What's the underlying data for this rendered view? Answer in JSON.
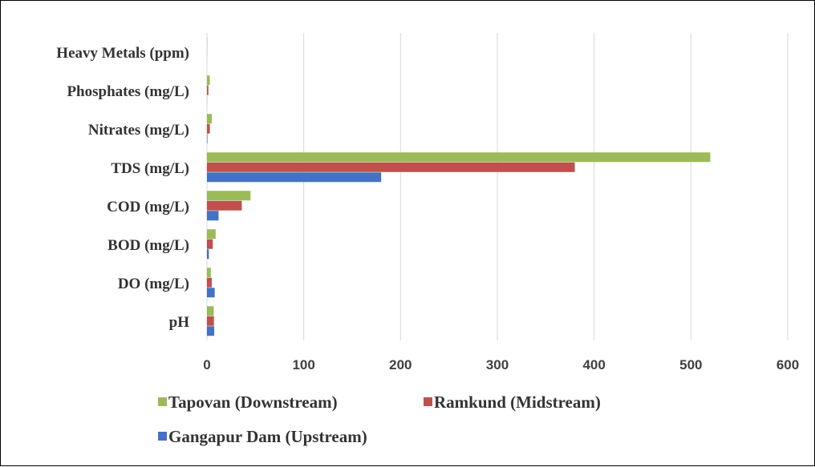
{
  "chart_data": {
    "type": "bar",
    "orientation": "horizontal",
    "categories": [
      "pH",
      "DO (mg/L)",
      "BOD (mg/L)",
      "COD (mg/L)",
      "TDS (mg/L)",
      "Nitrates (mg/L)",
      "Phosphates (mg/L)",
      "Heavy Metals (ppm)"
    ],
    "series": [
      {
        "name": "Gangapur Dam (Upstream)",
        "color": "#4472c4",
        "values": [
          7.5,
          8,
          2,
          12,
          180,
          0.5,
          0.1,
          0.02
        ]
      },
      {
        "name": "Ramkund (Midstream)",
        "color": "#c0504d",
        "values": [
          7.2,
          5,
          6,
          36,
          380,
          3,
          1.5,
          0.1
        ]
      },
      {
        "name": "Tapovan (Downstream)",
        "color": "#9bbb59",
        "values": [
          7,
          4,
          9,
          45,
          520,
          5,
          3,
          0.3
        ]
      }
    ],
    "xlim": [
      0,
      600
    ],
    "xticks": [
      "0",
      "100",
      "200",
      "300",
      "400",
      "500",
      "600"
    ],
    "grid": "vertical",
    "legend_placement": "bottom",
    "legend_order": [
      "Tapovan (Downstream)",
      "Ramkund (Midstream)",
      "Gangapur Dam (Upstream)"
    ],
    "title": "",
    "xlabel": "",
    "ylabel": ""
  }
}
